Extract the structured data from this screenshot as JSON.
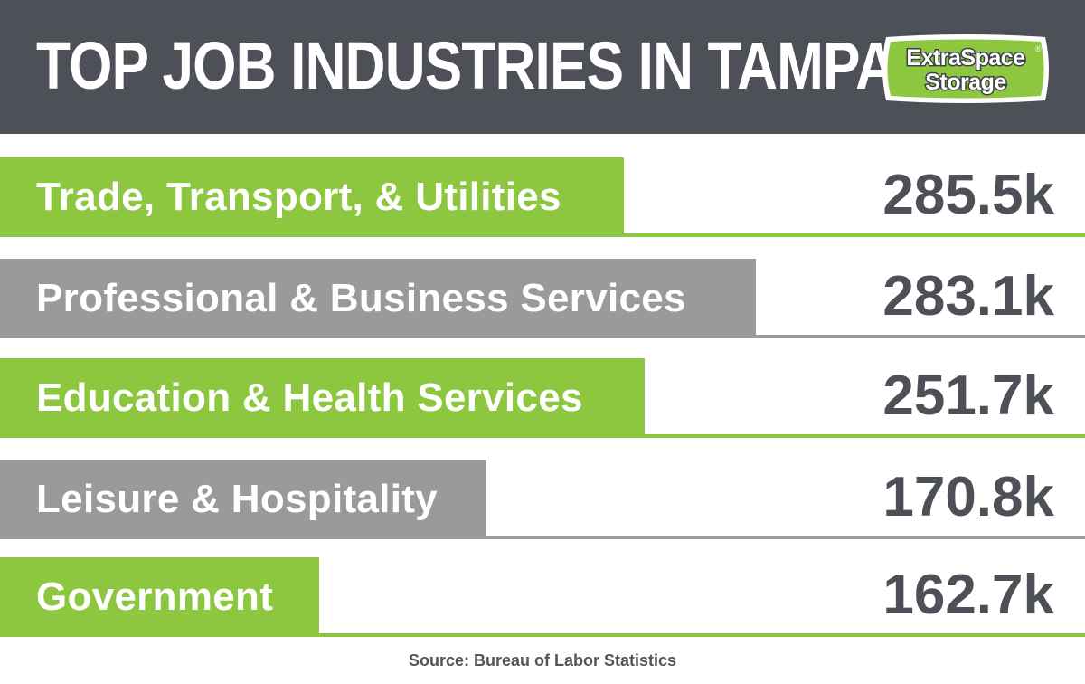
{
  "header": {
    "title": "TOP JOB INDUSTRIES IN TAMPA",
    "logo_text_line1": "ExtraSpace",
    "logo_text_line2": "Storage",
    "logo_registered": "®"
  },
  "colors": {
    "header_bg": "#4e5057",
    "green": "#8dc63f",
    "gray": "#9a9a9a",
    "value_text": "#4e5057"
  },
  "chart_data": {
    "type": "bar",
    "title": "TOP JOB INDUSTRIES IN TAMPA",
    "categories": [
      "Trade, Transport, & Utilities",
      "Professional & Business Services",
      "Education & Health Services",
      "Leisure & Hospitality",
      "Government"
    ],
    "values": [
      285.5,
      283.1,
      251.7,
      170.8,
      162.7
    ],
    "value_labels": [
      "285.5k",
      "283.1k",
      "251.7k",
      "170.8k",
      "162.7k"
    ],
    "bar_colors": [
      "green",
      "gray",
      "green",
      "gray",
      "green"
    ],
    "orientation": "horizontal",
    "source": "Source: Bureau of Labor Statistics"
  }
}
